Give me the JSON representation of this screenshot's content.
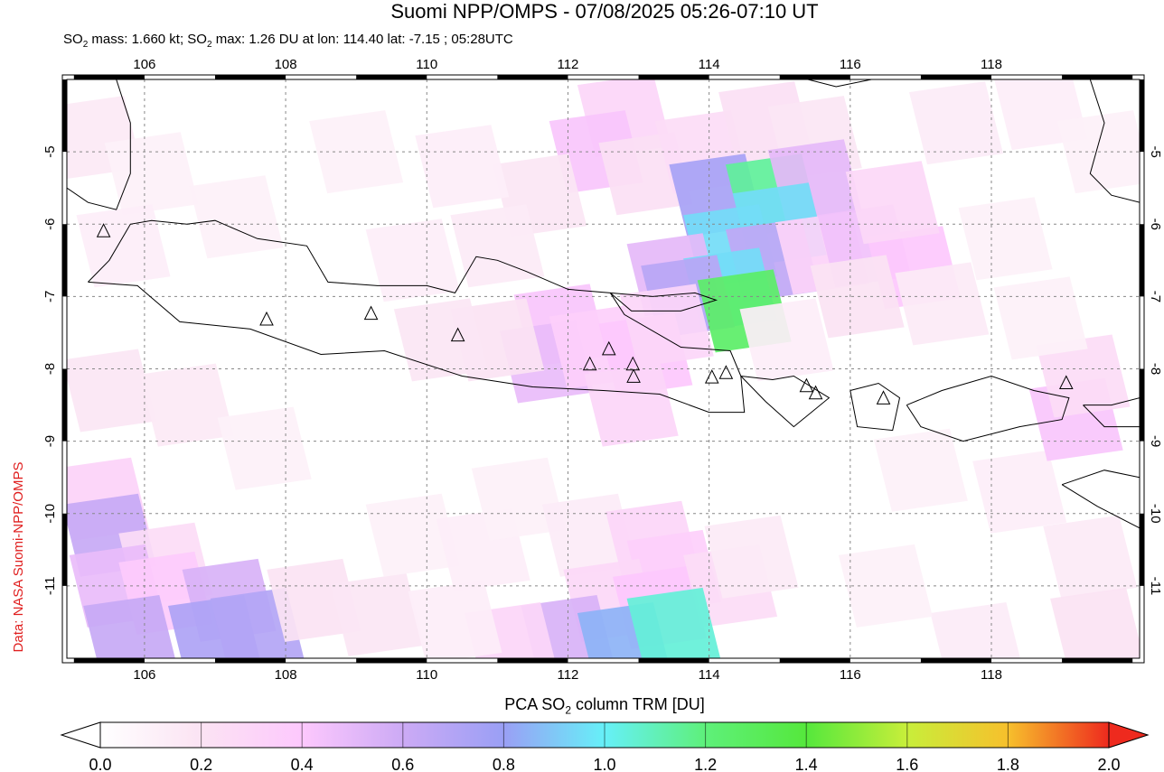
{
  "title": "Suomi NPP/OMPS - 07/08/2025 05:26-07:10 UT",
  "subtitle": {
    "part1": "SO",
    "sub1": "2",
    "part2": " mass: 1.660 kt; SO",
    "sub2": "2",
    "part3": " max: 1.26 DU at lon: 114.40 lat: -7.15 ; 05:28UTC"
  },
  "credit": "Data: NASA Suomi-NPP/OMPS",
  "colorbar": {
    "title_pre": "PCA SO",
    "title_sub": "2",
    "title_post": " column TRM [DU]",
    "ticks": [
      "0.0",
      "0.2",
      "0.4",
      "0.6",
      "0.8",
      "1.0",
      "1.2",
      "1.4",
      "1.6",
      "1.8",
      "2.0"
    ],
    "range": [
      0.0,
      2.0
    ]
  },
  "map": {
    "lon_range": [
      104.9,
      120.1
    ],
    "lat_range": [
      -12.0,
      -4.0
    ],
    "lon_ticks": [
      106,
      108,
      110,
      112,
      114,
      116,
      118
    ],
    "lat_ticks": [
      -5,
      -6,
      -7,
      -8,
      -9,
      -10,
      -11
    ],
    "grid": "dashed",
    "max_point": {
      "lon": 114.4,
      "lat": -7.15,
      "value": 1.26
    }
  },
  "volcanoes": [
    {
      "lon": 105.42,
      "lat": -6.1
    },
    {
      "lon": 107.73,
      "lat": -7.32
    },
    {
      "lon": 109.21,
      "lat": -7.24
    },
    {
      "lon": 110.44,
      "lat": -7.54
    },
    {
      "lon": 112.31,
      "lat": -7.94
    },
    {
      "lon": 112.58,
      "lat": -7.73
    },
    {
      "lon": 112.92,
      "lat": -7.94
    },
    {
      "lon": 112.93,
      "lat": -8.11
    },
    {
      "lon": 114.04,
      "lat": -8.12
    },
    {
      "lon": 114.24,
      "lat": -8.06
    },
    {
      "lon": 115.38,
      "lat": -8.24
    },
    {
      "lon": 115.51,
      "lat": -8.34
    },
    {
      "lon": 116.47,
      "lat": -8.41
    },
    {
      "lon": 119.06,
      "lat": -8.2
    }
  ],
  "so2_pixels": [
    {
      "lon": 112.8,
      "lat": -4.5,
      "v": 0.3
    },
    {
      "lon": 112.4,
      "lat": -5.0,
      "v": 0.42
    },
    {
      "lon": 113.1,
      "lat": -5.3,
      "v": 0.22
    },
    {
      "lon": 111.6,
      "lat": -5.6,
      "v": 0.18
    },
    {
      "lon": 110.5,
      "lat": -5.2,
      "v": 0.12
    },
    {
      "lon": 109.0,
      "lat": -5.0,
      "v": 0.1
    },
    {
      "lon": 113.9,
      "lat": -5.0,
      "v": 0.25
    },
    {
      "lon": 114.8,
      "lat": -4.6,
      "v": 0.22
    },
    {
      "lon": 115.5,
      "lat": -4.8,
      "v": 0.18
    },
    {
      "lon": 114.1,
      "lat": -5.6,
      "v": 0.75
    },
    {
      "lon": 114.9,
      "lat": -5.6,
      "v": 1.15
    },
    {
      "lon": 115.5,
      "lat": -5.4,
      "v": 0.5
    },
    {
      "lon": 115.0,
      "lat": -6.0,
      "v": 0.95
    },
    {
      "lon": 114.3,
      "lat": -6.3,
      "v": 0.95
    },
    {
      "lon": 114.9,
      "lat": -6.5,
      "v": 0.65
    },
    {
      "lon": 113.5,
      "lat": -6.7,
      "v": 0.5
    },
    {
      "lon": 114.3,
      "lat": -6.9,
      "v": 0.95
    },
    {
      "lon": 113.7,
      "lat": -7.0,
      "v": 0.68
    },
    {
      "lon": 114.5,
      "lat": -7.2,
      "v": 1.26
    },
    {
      "lon": 115.6,
      "lat": -6.4,
      "v": 0.32
    },
    {
      "lon": 116.2,
      "lat": -6.3,
      "v": 0.45
    },
    {
      "lon": 116.9,
      "lat": -6.6,
      "v": 0.4
    },
    {
      "lon": 116.6,
      "lat": -5.7,
      "v": 0.28
    },
    {
      "lon": 115.1,
      "lat": -7.6,
      "v": 0.12
    },
    {
      "lon": 116.1,
      "lat": -7.0,
      "v": 0.2
    },
    {
      "lon": 117.3,
      "lat": -7.1,
      "v": 0.15
    },
    {
      "lon": 111.9,
      "lat": -7.4,
      "v": 0.42
    },
    {
      "lon": 111.7,
      "lat": -7.9,
      "v": 0.48
    },
    {
      "lon": 112.4,
      "lat": -7.7,
      "v": 0.35
    },
    {
      "lon": 113.1,
      "lat": -7.8,
      "v": 0.4
    },
    {
      "lon": 113.4,
      "lat": -7.4,
      "v": 0.3
    },
    {
      "lon": 112.9,
      "lat": -8.5,
      "v": 0.3
    },
    {
      "lon": 111.0,
      "lat": -7.6,
      "v": 0.2
    },
    {
      "lon": 110.2,
      "lat": -7.6,
      "v": 0.18
    },
    {
      "lon": 111.0,
      "lat": -6.3,
      "v": 0.15
    },
    {
      "lon": 109.8,
      "lat": -6.5,
      "v": 0.12
    },
    {
      "lon": 105.3,
      "lat": -4.8,
      "v": 0.16
    },
    {
      "lon": 106.1,
      "lat": -5.3,
      "v": 0.1
    },
    {
      "lon": 105.7,
      "lat": -6.3,
      "v": 0.12
    },
    {
      "lon": 107.3,
      "lat": -5.9,
      "v": 0.1
    },
    {
      "lon": 105.5,
      "lat": -8.3,
      "v": 0.18
    },
    {
      "lon": 106.6,
      "lat": -8.5,
      "v": 0.16
    },
    {
      "lon": 107.7,
      "lat": -9.1,
      "v": 0.1
    },
    {
      "lon": 105.4,
      "lat": -9.8,
      "v": 0.32
    },
    {
      "lon": 105.5,
      "lat": -10.3,
      "v": 0.62
    },
    {
      "lon": 106.3,
      "lat": -10.7,
      "v": 0.25
    },
    {
      "lon": 105.6,
      "lat": -11.0,
      "v": 0.48
    },
    {
      "lon": 106.3,
      "lat": -11.1,
      "v": 0.38
    },
    {
      "lon": 107.2,
      "lat": -11.2,
      "v": 0.55
    },
    {
      "lon": 105.8,
      "lat": -11.7,
      "v": 0.62
    },
    {
      "lon": 107.0,
      "lat": -11.7,
      "v": 0.72
    },
    {
      "lon": 107.6,
      "lat": -11.6,
      "v": 0.7
    },
    {
      "lon": 108.4,
      "lat": -11.2,
      "v": 0.2
    },
    {
      "lon": 109.3,
      "lat": -11.4,
      "v": 0.18
    },
    {
      "lon": 109.8,
      "lat": -10.3,
      "v": 0.1
    },
    {
      "lon": 110.8,
      "lat": -10.5,
      "v": 0.12
    },
    {
      "lon": 111.3,
      "lat": -9.8,
      "v": 0.1
    },
    {
      "lon": 112.3,
      "lat": -10.3,
      "v": 0.14
    },
    {
      "lon": 113.2,
      "lat": -10.4,
      "v": 0.3
    },
    {
      "lon": 113.5,
      "lat": -10.8,
      "v": 0.35
    },
    {
      "lon": 112.6,
      "lat": -11.2,
      "v": 0.28
    },
    {
      "lon": 113.3,
      "lat": -11.3,
      "v": 0.4
    },
    {
      "lon": 114.3,
      "lat": -11.0,
      "v": 0.25
    },
    {
      "lon": 114.6,
      "lat": -10.6,
      "v": 0.15
    },
    {
      "lon": 112.0,
      "lat": -11.7,
      "v": 0.55
    },
    {
      "lon": 112.8,
      "lat": -11.8,
      "v": 0.85
    },
    {
      "lon": 113.5,
      "lat": -11.6,
      "v": 1.05
    },
    {
      "lon": 111.2,
      "lat": -11.8,
      "v": 0.3
    },
    {
      "lon": 110.4,
      "lat": -11.5,
      "v": 0.12
    },
    {
      "lon": 117.0,
      "lat": -9.4,
      "v": 0.1
    },
    {
      "lon": 118.4,
      "lat": -9.7,
      "v": 0.12
    },
    {
      "lon": 119.2,
      "lat": -8.7,
      "v": 0.42
    },
    {
      "lon": 119.3,
      "lat": -8.1,
      "v": 0.25
    },
    {
      "lon": 119.4,
      "lat": -10.6,
      "v": 0.15
    },
    {
      "lon": 119.5,
      "lat": -11.6,
      "v": 0.2
    },
    {
      "lon": 117.8,
      "lat": -11.8,
      "v": 0.14
    },
    {
      "lon": 116.5,
      "lat": -11.0,
      "v": 0.1
    },
    {
      "lon": 117.5,
      "lat": -4.6,
      "v": 0.14
    },
    {
      "lon": 118.7,
      "lat": -4.4,
      "v": 0.12
    },
    {
      "lon": 119.6,
      "lat": -5.0,
      "v": 0.1
    },
    {
      "lon": 118.2,
      "lat": -6.2,
      "v": 0.1
    },
    {
      "lon": 118.7,
      "lat": -7.3,
      "v": 0.1
    }
  ]
}
